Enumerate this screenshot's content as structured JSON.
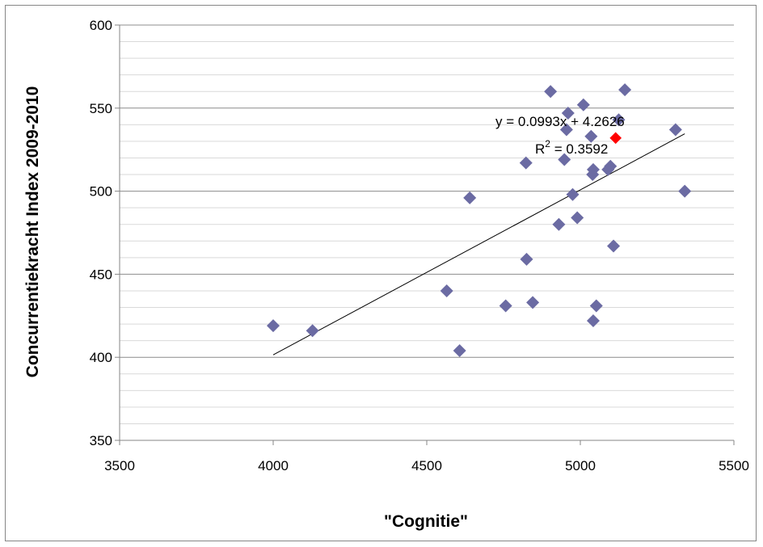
{
  "chart_data": {
    "type": "scatter",
    "title": "",
    "xlabel": "\"Cognitie\"",
    "ylabel": "Concurrentiekracht Index 2009-2010",
    "xlim": [
      3500,
      5500
    ],
    "ylim": [
      350,
      600
    ],
    "x_ticks": [
      3500,
      4000,
      4500,
      5000,
      5500
    ],
    "y_ticks": [
      350,
      400,
      450,
      500,
      550,
      600
    ],
    "minor_grid_step": 10,
    "grid": true,
    "legend": "none",
    "marker_color": "#6B6BA3",
    "highlight_color": "#FF0000",
    "points": [
      {
        "x": 4000,
        "y": 419
      },
      {
        "x": 4128,
        "y": 416
      },
      {
        "x": 4565,
        "y": 440
      },
      {
        "x": 4607,
        "y": 404
      },
      {
        "x": 4640,
        "y": 496
      },
      {
        "x": 4757,
        "y": 431
      },
      {
        "x": 4823,
        "y": 517
      },
      {
        "x": 4825,
        "y": 459
      },
      {
        "x": 4845,
        "y": 433
      },
      {
        "x": 4903,
        "y": 560
      },
      {
        "x": 4930,
        "y": 480
      },
      {
        "x": 4948,
        "y": 519
      },
      {
        "x": 4955,
        "y": 537
      },
      {
        "x": 4960,
        "y": 547
      },
      {
        "x": 4975,
        "y": 498
      },
      {
        "x": 4990,
        "y": 484
      },
      {
        "x": 5010,
        "y": 552
      },
      {
        "x": 5035,
        "y": 533
      },
      {
        "x": 5040,
        "y": 510
      },
      {
        "x": 5042,
        "y": 513
      },
      {
        "x": 5042,
        "y": 422
      },
      {
        "x": 5052,
        "y": 431
      },
      {
        "x": 5090,
        "y": 513
      },
      {
        "x": 5098,
        "y": 515
      },
      {
        "x": 5108,
        "y": 467
      },
      {
        "x": 5125,
        "y": 543
      },
      {
        "x": 5145,
        "y": 561
      },
      {
        "x": 5310,
        "y": 537
      },
      {
        "x": 5340,
        "y": 500
      },
      {
        "x": 5115,
        "y": 532,
        "highlight": true
      }
    ],
    "trendline": {
      "x_start": 4000,
      "x_end": 5340,
      "equation": "y = 0.0993x + 4.2626",
      "r2_prefix": "R",
      "r2_sup": "2",
      "r2_value": " = 0.3592",
      "slope": 0.0993,
      "intercept": 4.2626
    }
  }
}
